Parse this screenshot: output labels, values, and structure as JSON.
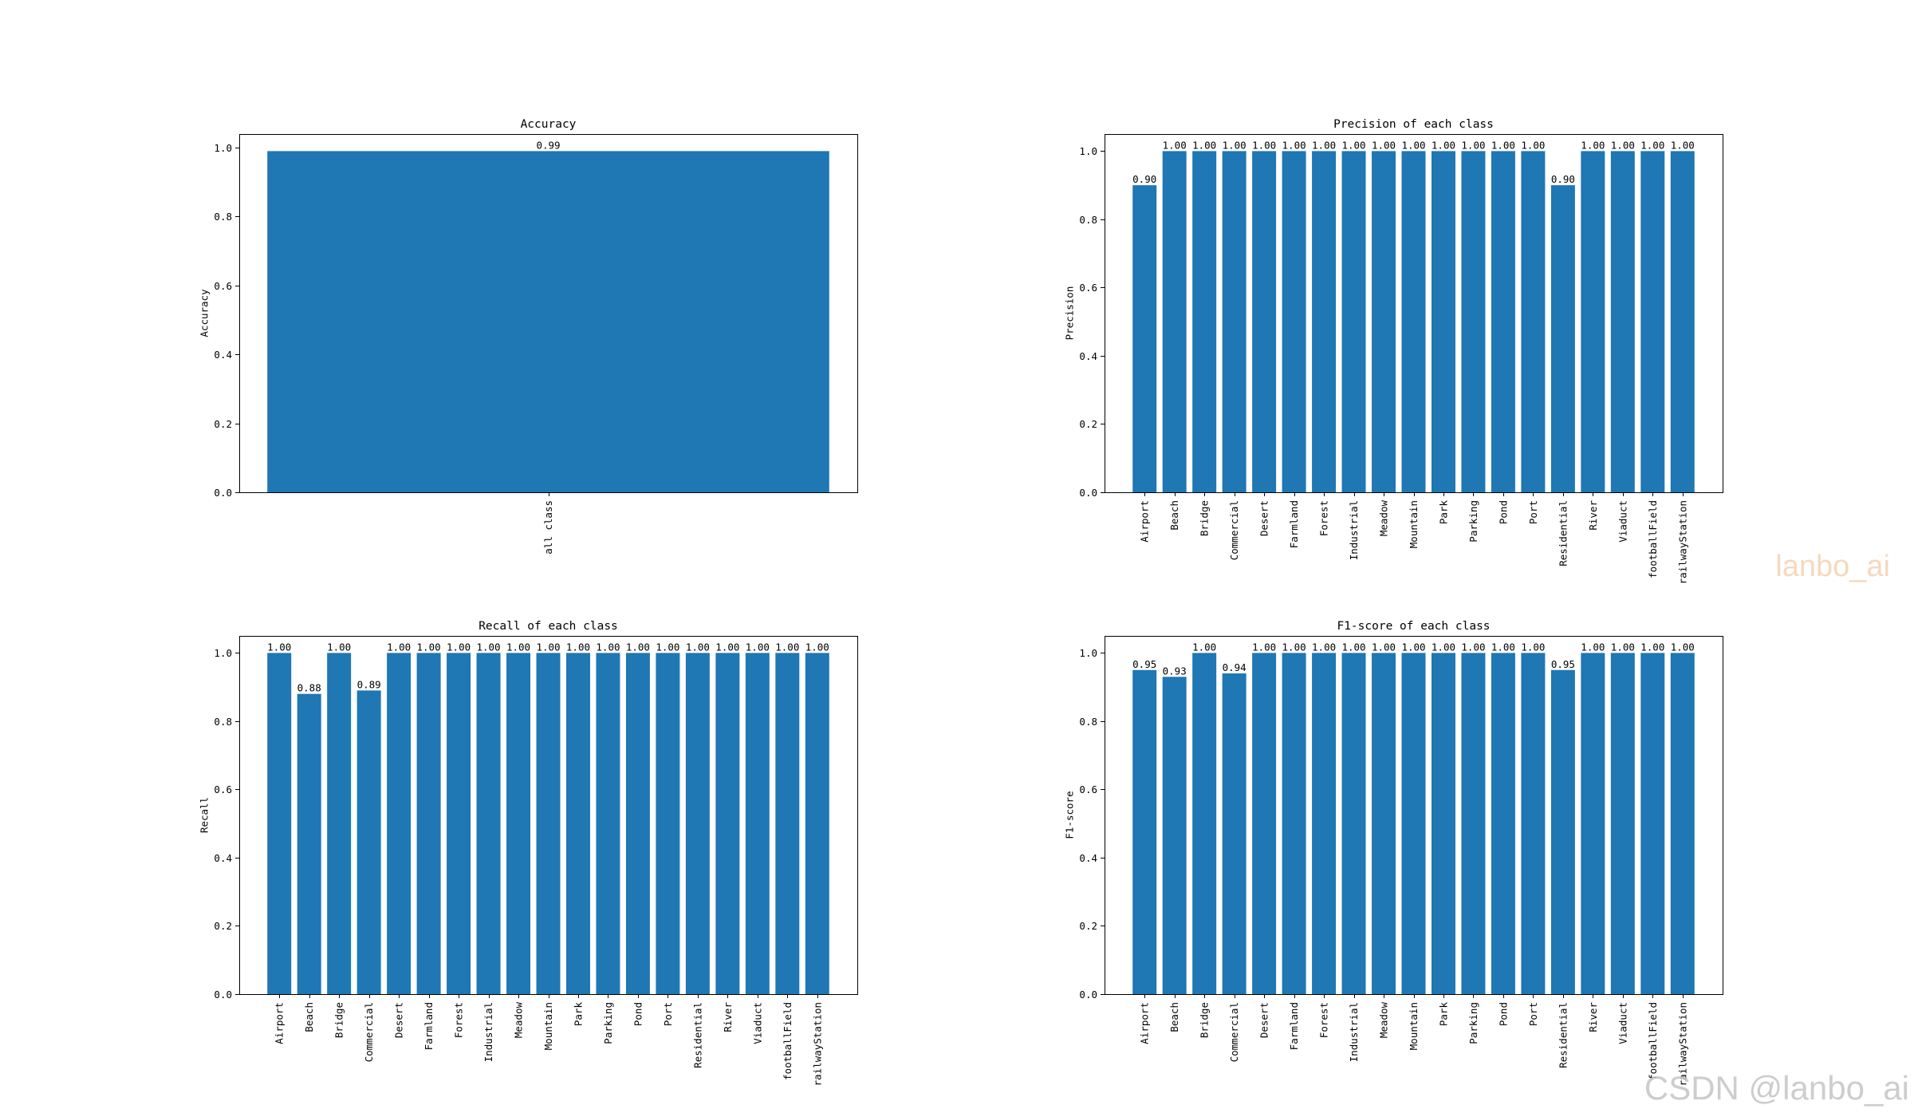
{
  "chart_data": [
    {
      "type": "bar",
      "title": "Accuracy",
      "ylabel": "Accuracy",
      "categories": [
        "all class"
      ],
      "values": [
        0.99
      ],
      "value_labels": [
        "0.99"
      ],
      "ylim": [
        0,
        1.0395
      ],
      "yticks": [
        "0.0",
        "0.2",
        "0.4",
        "0.6",
        "0.8",
        "1.0"
      ],
      "grid": false,
      "color": "#1f77b4"
    },
    {
      "type": "bar",
      "title": "Precision of each class",
      "ylabel": "Precision",
      "categories": [
        "Airport",
        "Beach",
        "Bridge",
        "Commercial",
        "Desert",
        "Farmland",
        "Forest",
        "Industrial",
        "Meadow",
        "Mountain",
        "Park",
        "Parking",
        "Pond",
        "Port",
        "Residential",
        "River",
        "Viaduct",
        "footballField",
        "railwayStation"
      ],
      "values": [
        0.9,
        1.0,
        1.0,
        1.0,
        1.0,
        1.0,
        1.0,
        1.0,
        1.0,
        1.0,
        1.0,
        1.0,
        1.0,
        1.0,
        0.9,
        1.0,
        1.0,
        1.0,
        1.0
      ],
      "value_labels": [
        "0.90",
        "1.00",
        "1.00",
        "1.00",
        "1.00",
        "1.00",
        "1.00",
        "1.00",
        "1.00",
        "1.00",
        "1.00",
        "1.00",
        "1.00",
        "1.00",
        "0.90",
        "1.00",
        "1.00",
        "1.00",
        "1.00"
      ],
      "ylim": [
        0,
        1.05
      ],
      "yticks": [
        "0.0",
        "0.2",
        "0.4",
        "0.6",
        "0.8",
        "1.0"
      ],
      "grid": false,
      "color": "#1f77b4"
    },
    {
      "type": "bar",
      "title": "Recall of each class",
      "ylabel": "Recall",
      "categories": [
        "Airport",
        "Beach",
        "Bridge",
        "Commercial",
        "Desert",
        "Farmland",
        "Forest",
        "Industrial",
        "Meadow",
        "Mountain",
        "Park",
        "Parking",
        "Pond",
        "Port",
        "Residential",
        "River",
        "Viaduct",
        "footballField",
        "railwayStation"
      ],
      "values": [
        1.0,
        0.88,
        1.0,
        0.89,
        1.0,
        1.0,
        1.0,
        1.0,
        1.0,
        1.0,
        1.0,
        1.0,
        1.0,
        1.0,
        1.0,
        1.0,
        1.0,
        1.0,
        1.0
      ],
      "value_labels": [
        "1.00",
        "0.88",
        "1.00",
        "0.89",
        "1.00",
        "1.00",
        "1.00",
        "1.00",
        "1.00",
        "1.00",
        "1.00",
        "1.00",
        "1.00",
        "1.00",
        "1.00",
        "1.00",
        "1.00",
        "1.00",
        "1.00"
      ],
      "ylim": [
        0,
        1.05
      ],
      "yticks": [
        "0.0",
        "0.2",
        "0.4",
        "0.6",
        "0.8",
        "1.0"
      ],
      "grid": false,
      "color": "#1f77b4"
    },
    {
      "type": "bar",
      "title": "F1-score of each class",
      "ylabel": "F1-score",
      "categories": [
        "Airport",
        "Beach",
        "Bridge",
        "Commercial",
        "Desert",
        "Farmland",
        "Forest",
        "Industrial",
        "Meadow",
        "Mountain",
        "Park",
        "Parking",
        "Pond",
        "Port",
        "Residential",
        "River",
        "Viaduct",
        "footballField",
        "railwayStation"
      ],
      "values": [
        0.95,
        0.93,
        1.0,
        0.94,
        1.0,
        1.0,
        1.0,
        1.0,
        1.0,
        1.0,
        1.0,
        1.0,
        1.0,
        1.0,
        0.95,
        1.0,
        1.0,
        1.0,
        1.0
      ],
      "value_labels": [
        "0.95",
        "0.93",
        "1.00",
        "0.94",
        "1.00",
        "1.00",
        "1.00",
        "1.00",
        "1.00",
        "1.00",
        "1.00",
        "1.00",
        "1.00",
        "1.00",
        "0.95",
        "1.00",
        "1.00",
        "1.00",
        "1.00"
      ],
      "ylim": [
        0,
        1.05
      ],
      "yticks": [
        "0.0",
        "0.2",
        "0.4",
        "0.6",
        "0.8",
        "1.0"
      ],
      "grid": false,
      "color": "#1f77b4"
    }
  ],
  "watermarks": [
    "lanbo_ai",
    "CSDN @lanbo_ai"
  ]
}
